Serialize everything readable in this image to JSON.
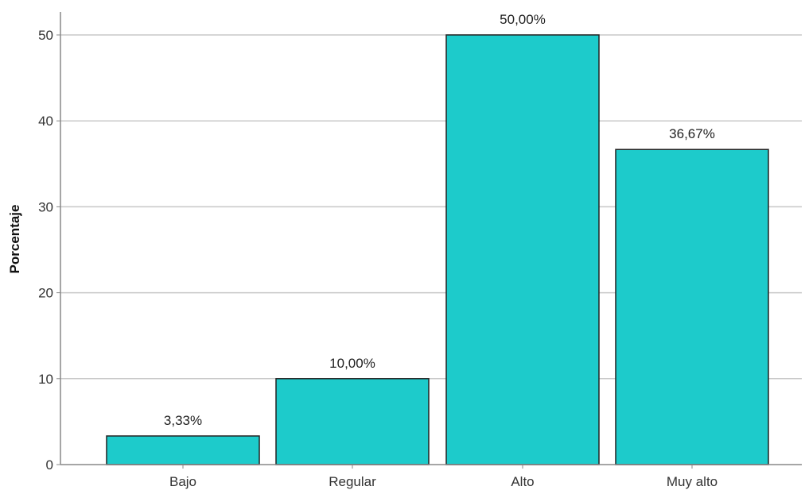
{
  "chart_data": {
    "type": "bar",
    "categories": [
      "Bajo",
      "Regular",
      "Alto",
      "Muy alto"
    ],
    "values": [
      3.33,
      10.0,
      50.0,
      36.67
    ],
    "data_labels": [
      "3,33%",
      "10,00%",
      "50,00%",
      "36,67%"
    ],
    "title": "",
    "xlabel": "",
    "ylabel": "Porcentaje",
    "ylim": [
      0,
      55
    ],
    "yticks": [
      0,
      10,
      20,
      30,
      40,
      50
    ],
    "ytick_labels": [
      "0",
      "10",
      "20",
      "30",
      "40",
      "50"
    ],
    "grid": true,
    "legend": "none",
    "colors": {
      "bar_fill": "#1dcbcb",
      "bar_stroke": "#222222",
      "grid": "#c8c8c8",
      "axis": "#888888"
    }
  }
}
